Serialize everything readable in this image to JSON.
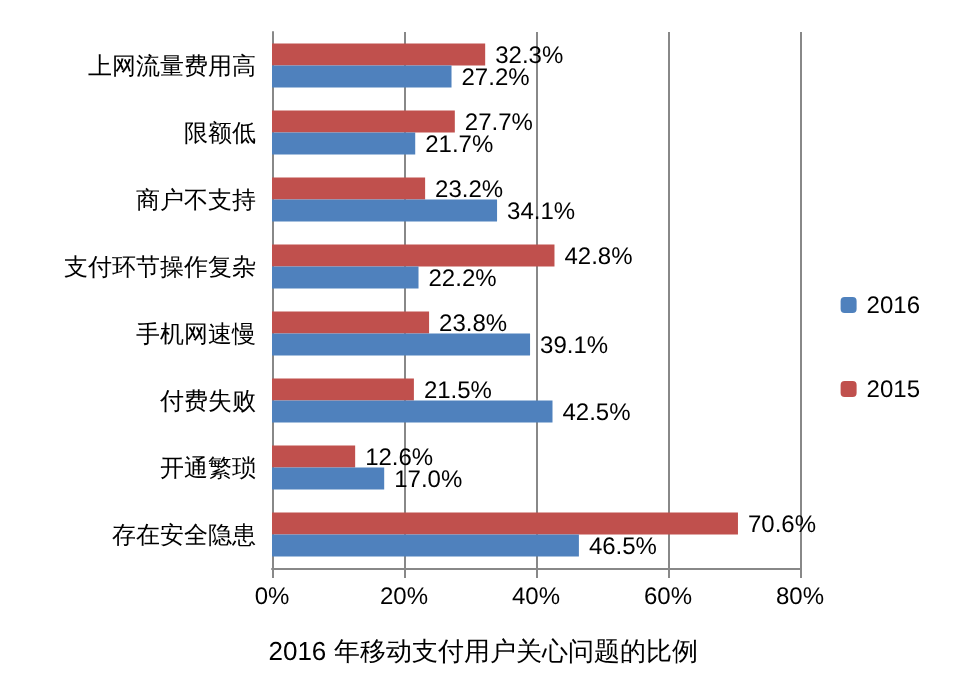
{
  "chart_data": {
    "type": "bar",
    "orientation": "horizontal",
    "title": "2016 年移动支付用户关心问题的比例",
    "categories": [
      "上网流量费用高",
      "限额低",
      "商户不支持",
      "支付环节操作复杂",
      "手机网速慢",
      "付费失败",
      "开通繁琐",
      "存在安全隐患"
    ],
    "series": [
      {
        "name": "2015",
        "color": "#c0504d",
        "values": [
          32.3,
          27.7,
          23.2,
          42.8,
          23.8,
          21.5,
          12.6,
          70.6
        ],
        "value_labels": [
          "32.3%",
          "27.7%",
          "23.2%",
          "42.8%",
          "23.8%",
          "21.5%",
          "12.6%",
          "70.6%"
        ]
      },
      {
        "name": "2016",
        "color": "#4f81bd",
        "values": [
          27.2,
          21.7,
          34.1,
          22.2,
          39.1,
          42.5,
          17.0,
          46.5
        ],
        "value_labels": [
          "27.2%",
          "21.7%",
          "34.1%",
          "22.2%",
          "39.1%",
          "42.5%",
          "17.0%",
          "46.5%"
        ]
      }
    ],
    "xlim": [
      0,
      80
    ],
    "xticks": [
      {
        "value": 0,
        "label": "0%"
      },
      {
        "value": 20,
        "label": "20%"
      },
      {
        "value": 40,
        "label": "40%"
      },
      {
        "value": 60,
        "label": "60%"
      },
      {
        "value": 80,
        "label": "80%"
      }
    ],
    "grid": "x",
    "legend": "right"
  }
}
